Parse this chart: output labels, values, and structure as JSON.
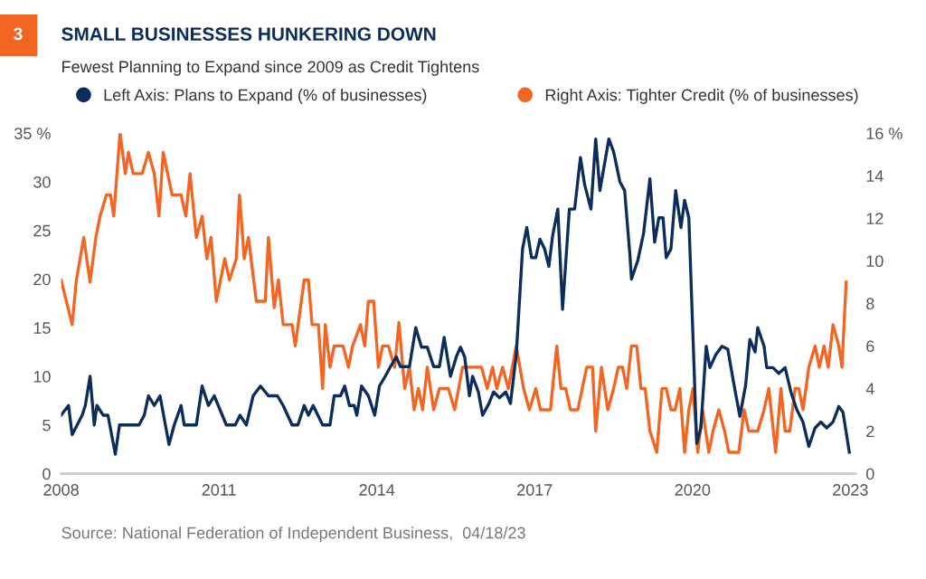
{
  "chart_data": {
    "type": "line",
    "title": "SMALL BUSINESSES HUNKERING DOWN",
    "subtitle": "Fewest Planning to Expand since 2009 as Credit Tightens",
    "annotations": [
      "3",
      "Source: National Federation of Independent Business,  04/18/23"
    ],
    "legend": "top",
    "grid": false,
    "marker": "none",
    "line_style": "solid",
    "xlim": [
      2008,
      2023.1
    ],
    "xticks": [
      2008,
      2011,
      2014,
      2017,
      2020,
      2023
    ],
    "ylim": [
      0,
      35
    ],
    "yticks": [
      0,
      5,
      10,
      15,
      20,
      25,
      30,
      {
        "value": 35,
        "label": "35 %"
      }
    ],
    "y2lim": [
      0,
      16
    ],
    "y2ticks": [
      0,
      2,
      4,
      6,
      8,
      10,
      12,
      14,
      {
        "value": 16,
        "label": "16 %"
      }
    ],
    "series": [
      {
        "name": "Left Axis: Plans to Expand (% of businesses)",
        "color": "#0b2d5b",
        "axis": "y",
        "x": [
          2008.0,
          2008.14,
          2008.21,
          2008.4,
          2008.46,
          2008.55,
          2008.63,
          2008.68,
          2008.8,
          2008.89,
          2009.03,
          2009.11,
          2009.48,
          2009.58,
          2009.66,
          2009.77,
          2009.88,
          2010.05,
          2010.15,
          2010.28,
          2010.34,
          2010.57,
          2010.68,
          2010.8,
          2010.91,
          2011.14,
          2011.31,
          2011.4,
          2011.52,
          2011.65,
          2011.79,
          2011.94,
          2012.11,
          2012.22,
          2012.39,
          2012.5,
          2012.62,
          2012.7,
          2012.79,
          2012.97,
          2013.11,
          2013.19,
          2013.31,
          2013.39,
          2013.48,
          2013.57,
          2013.62,
          2013.71,
          2013.84,
          2013.96,
          2014.05,
          2014.16,
          2014.26,
          2014.37,
          2014.45,
          2014.62,
          2014.74,
          2014.85,
          2014.96,
          2015.08,
          2015.19,
          2015.28,
          2015.4,
          2015.51,
          2015.59,
          2015.67,
          2015.76,
          2015.82,
          2015.93,
          2016.01,
          2016.13,
          2016.22,
          2016.33,
          2016.45,
          2016.54,
          2016.65,
          2016.77,
          2016.85,
          2016.94,
          2017.02,
          2017.1,
          2017.19,
          2017.27,
          2017.34,
          2017.44,
          2017.53,
          2017.66,
          2017.76,
          2017.87,
          2017.95,
          2018.07,
          2018.16,
          2018.24,
          2018.41,
          2018.5,
          2018.62,
          2018.71,
          2018.81,
          2018.84,
          2018.96,
          2019.07,
          2019.19,
          2019.28,
          2019.36,
          2019.44,
          2019.5,
          2019.59,
          2019.68,
          2019.78,
          2019.85,
          2019.93,
          2020.08,
          2020.16,
          2020.26,
          2020.33,
          2020.44,
          2020.56,
          2020.67,
          2020.79,
          2020.9,
          2021.01,
          2021.09,
          2021.19,
          2021.24,
          2021.36,
          2021.41,
          2021.53,
          2021.64,
          2021.76,
          2021.87,
          2021.98,
          2022.1,
          2022.21,
          2022.33,
          2022.44,
          2022.55,
          2022.67,
          2022.78,
          2022.86,
          2022.98
        ],
        "values": [
          6,
          7,
          4,
          6,
          7,
          10,
          5,
          7,
          6,
          6,
          2,
          5,
          5,
          6,
          8,
          7,
          8,
          3,
          5,
          7,
          5,
          5,
          9,
          7,
          8,
          5,
          5,
          6,
          5,
          8,
          9,
          8,
          8,
          7,
          5,
          5,
          7,
          6,
          7,
          5,
          5,
          8,
          8,
          9,
          7,
          7,
          6,
          9,
          8,
          6,
          9,
          10,
          11,
          12,
          11,
          11,
          15,
          13,
          13,
          11,
          11,
          14,
          10,
          12,
          13,
          12,
          8,
          10,
          8.4,
          6,
          7.2,
          8.4,
          7.8,
          8.4,
          7.2,
          12.2,
          23.1,
          25.3,
          22.2,
          22.2,
          24.1,
          23.1,
          21.3,
          24.4,
          27.2,
          16.9,
          27.2,
          27.2,
          32.5,
          29.7,
          27.2,
          34.4,
          29.1,
          34.4,
          33.1,
          30,
          29.1,
          22.5,
          20,
          21.9,
          24.7,
          30.3,
          23.8,
          26.3,
          26.3,
          22.2,
          23.1,
          29.1,
          25.3,
          28.1,
          26.3,
          3.1,
          4.7,
          13.1,
          10.9,
          12.2,
          13.1,
          12.8,
          9.1,
          5.9,
          9.1,
          13.8,
          12.5,
          15,
          13.1,
          10.9,
          10.9,
          10.3,
          10.9,
          8.4,
          6.6,
          5.3,
          2.8,
          4.7,
          5.3,
          4.7,
          5.3,
          6.9,
          6.3,
          2.2
        ]
      },
      {
        "name": "Right Axis: Tighter Credit (% of businesses)",
        "color": "#f26522",
        "axis": "y2",
        "x": [
          2008.0,
          2008.21,
          2008.29,
          2008.43,
          2008.55,
          2008.66,
          2008.74,
          2008.86,
          2008.94,
          2009.0,
          2009.12,
          2009.22,
          2009.28,
          2009.37,
          2009.54,
          2009.66,
          2009.77,
          2009.86,
          2009.94,
          2010.11,
          2010.28,
          2010.37,
          2010.45,
          2010.57,
          2010.68,
          2010.77,
          2010.85,
          2010.95,
          2011.11,
          2011.2,
          2011.33,
          2011.39,
          2011.48,
          2011.56,
          2011.71,
          2011.88,
          2011.94,
          2012.05,
          2012.13,
          2012.22,
          2012.39,
          2012.45,
          2012.62,
          2012.7,
          2012.77,
          2012.89,
          2012.97,
          2013.02,
          2013.11,
          2013.19,
          2013.36,
          2013.46,
          2013.54,
          2013.69,
          2013.77,
          2013.84,
          2013.94,
          2014.03,
          2014.11,
          2014.22,
          2014.34,
          2014.42,
          2014.53,
          2014.62,
          2014.71,
          2014.79,
          2014.87,
          2014.96,
          2015.08,
          2015.19,
          2015.36,
          2015.48,
          2015.63,
          2015.71,
          2015.99,
          2016.1,
          2016.2,
          2016.28,
          2016.39,
          2016.5,
          2016.65,
          2016.79,
          2016.9,
          2017.02,
          2017.11,
          2017.3,
          2017.42,
          2017.5,
          2017.59,
          2017.68,
          2017.82,
          2017.99,
          2018.1,
          2018.16,
          2018.27,
          2018.39,
          2018.5,
          2018.59,
          2018.67,
          2018.75,
          2018.84,
          2018.94,
          2019.02,
          2019.1,
          2019.19,
          2019.32,
          2019.42,
          2019.5,
          2019.59,
          2019.67,
          2019.76,
          2019.85,
          2019.93,
          2020.01,
          2020.1,
          2020.19,
          2020.31,
          2020.39,
          2020.5,
          2020.61,
          2020.69,
          2020.88,
          2020.98,
          2021.07,
          2021.24,
          2021.36,
          2021.45,
          2021.58,
          2021.68,
          2021.76,
          2021.85,
          2021.95,
          2022.02,
          2022.1,
          2022.21,
          2022.33,
          2022.41,
          2022.5,
          2022.58,
          2022.67,
          2022.78,
          2022.84,
          2022.92
        ],
        "values": [
          9.1,
          7.0,
          9.1,
          11.1,
          9.0,
          11.1,
          12.1,
          13.1,
          13.1,
          12.1,
          16.0,
          14.1,
          15.1,
          14.1,
          14.1,
          15.1,
          14.1,
          12.1,
          15.1,
          13.1,
          13.1,
          12.1,
          14.1,
          11.1,
          12.1,
          10.1,
          11.1,
          8.1,
          10.1,
          9.1,
          10.1,
          13.1,
          10.1,
          11.1,
          8.1,
          8.1,
          11.1,
          7.8,
          9.1,
          7.0,
          7.0,
          6.0,
          9.1,
          9.1,
          7.0,
          7.0,
          4.0,
          7.0,
          5.0,
          6.0,
          6.0,
          5.0,
          6.0,
          7.0,
          6.0,
          8.1,
          8.1,
          5.0,
          6.0,
          6.0,
          5.0,
          7.1,
          4.0,
          5.0,
          3.0,
          4.0,
          3.0,
          5.0,
          3.0,
          4.0,
          4.0,
          3.0,
          5.0,
          5.0,
          5.0,
          4.0,
          5.0,
          4.0,
          5.0,
          4.0,
          6.0,
          4.0,
          3.0,
          4.0,
          3.0,
          3.0,
          6.0,
          4.0,
          4.0,
          3.0,
          3.0,
          5.0,
          5.0,
          2.0,
          5.0,
          3.0,
          4.0,
          5.0,
          5.0,
          4.0,
          6.0,
          6.0,
          4.0,
          4.0,
          2.0,
          1.0,
          4.0,
          4.0,
          3.0,
          3.0,
          4.0,
          1.0,
          3.0,
          4.0,
          1.0,
          3.0,
          1.0,
          2.0,
          3.0,
          2.0,
          1.0,
          1.0,
          3.0,
          2.0,
          2.0,
          3.0,
          4.0,
          1.0,
          4.0,
          2.0,
          2.0,
          4.0,
          4.0,
          3.0,
          5.0,
          6.0,
          5.0,
          6.0,
          5.0,
          7.0,
          6.0,
          5.0,
          9.0
        ]
      }
    ]
  }
}
